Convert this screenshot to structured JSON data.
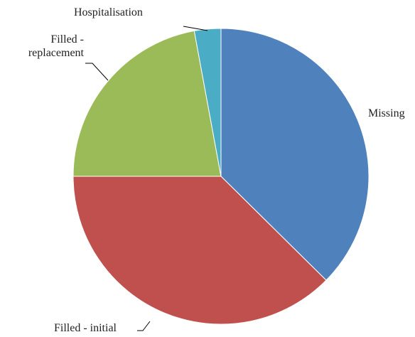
{
  "chart_data": {
    "type": "pie",
    "categories": [
      "Missing",
      "Filled - initial",
      "Filled - replacement",
      "Hospitalisation"
    ],
    "values": [
      37.4,
      37.6,
      22.1,
      2.9
    ],
    "colors": [
      "#4f81bd",
      "#c0504d",
      "#9bbb59",
      "#4bacc6"
    ],
    "start_angle": 0,
    "direction": "clockwise"
  }
}
